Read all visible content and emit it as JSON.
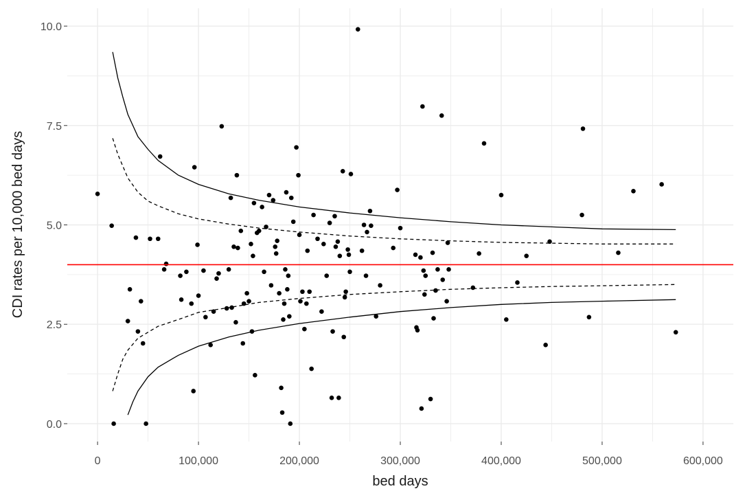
{
  "chart_data": {
    "type": "scatter",
    "title": "",
    "xlabel": "bed days",
    "ylabel": "CDI rates per 10,000 bed days",
    "xlim": [
      -30000,
      630000
    ],
    "ylim": [
      -0.45,
      10.45
    ],
    "x_ticks": [
      0,
      100000,
      200000,
      300000,
      400000,
      500000,
      600000
    ],
    "x_tick_labels": [
      "0",
      "100,000",
      "200,000",
      "300,000",
      "400,000",
      "500,000",
      "600,000"
    ],
    "y_ticks": [
      0,
      2.5,
      5,
      7.5,
      10
    ],
    "y_tick_labels": [
      "0.0",
      "2.5",
      "5.0",
      "7.5",
      "10.0"
    ],
    "grid": true,
    "legend": "none",
    "colors": {
      "points": "#000000",
      "mean_line": "#ff0000",
      "limit_lines": "#000000",
      "grid": "#ebebeb"
    },
    "mean": 4.0,
    "series": [
      {
        "type": "scatter",
        "points": [
          [
            0,
            5.78
          ],
          [
            14000,
            4.98
          ],
          [
            16000,
            0.0
          ],
          [
            30000,
            2.58
          ],
          [
            32000,
            3.38
          ],
          [
            38000,
            4.68
          ],
          [
            40000,
            2.32
          ],
          [
            43000,
            3.08
          ],
          [
            45000,
            2.02
          ],
          [
            48000,
            0.0
          ],
          [
            52000,
            4.65
          ],
          [
            60000,
            4.65
          ],
          [
            62000,
            6.72
          ],
          [
            66000,
            3.88
          ],
          [
            68000,
            4.02
          ],
          [
            82000,
            3.72
          ],
          [
            83000,
            3.12
          ],
          [
            88000,
            3.82
          ],
          [
            93000,
            3.02
          ],
          [
            95000,
            0.82
          ],
          [
            96000,
            6.45
          ],
          [
            99000,
            4.5
          ],
          [
            100000,
            3.22
          ],
          [
            105000,
            3.85
          ],
          [
            107000,
            2.68
          ],
          [
            112000,
            1.98
          ],
          [
            115000,
            2.82
          ],
          [
            118000,
            3.65
          ],
          [
            120000,
            3.78
          ],
          [
            123000,
            7.48
          ],
          [
            128000,
            2.9
          ],
          [
            130000,
            3.88
          ],
          [
            132000,
            5.68
          ],
          [
            133000,
            2.92
          ],
          [
            135000,
            4.45
          ],
          [
            137000,
            2.55
          ],
          [
            138000,
            6.25
          ],
          [
            139000,
            4.42
          ],
          [
            142000,
            4.85
          ],
          [
            144000,
            2.02
          ],
          [
            145000,
            3.02
          ],
          [
            148000,
            3.28
          ],
          [
            150000,
            3.08
          ],
          [
            152000,
            4.52
          ],
          [
            153000,
            2.32
          ],
          [
            154000,
            4.22
          ],
          [
            155000,
            5.55
          ],
          [
            156000,
            1.22
          ],
          [
            158000,
            4.8
          ],
          [
            160000,
            4.85
          ],
          [
            163000,
            5.45
          ],
          [
            165000,
            3.82
          ],
          [
            167000,
            4.95
          ],
          [
            170000,
            5.75
          ],
          [
            172000,
            3.48
          ],
          [
            174000,
            5.62
          ],
          [
            176000,
            4.45
          ],
          [
            177000,
            4.28
          ],
          [
            178000,
            4.6
          ],
          [
            180000,
            3.28
          ],
          [
            182000,
            0.9
          ],
          [
            183000,
            0.28
          ],
          [
            184000,
            2.62
          ],
          [
            185000,
            3.02
          ],
          [
            186000,
            3.88
          ],
          [
            187000,
            5.82
          ],
          [
            188000,
            3.38
          ],
          [
            189000,
            3.72
          ],
          [
            190000,
            2.7
          ],
          [
            191000,
            0.0
          ],
          [
            192000,
            5.68
          ],
          [
            194000,
            5.08
          ],
          [
            197000,
            6.95
          ],
          [
            199000,
            6.25
          ],
          [
            200000,
            4.75
          ],
          [
            201000,
            3.08
          ],
          [
            203000,
            3.32
          ],
          [
            205000,
            2.38
          ],
          [
            207000,
            3.02
          ],
          [
            208000,
            4.35
          ],
          [
            210000,
            3.32
          ],
          [
            212000,
            1.38
          ],
          [
            214000,
            5.25
          ],
          [
            218000,
            4.65
          ],
          [
            222000,
            2.82
          ],
          [
            224000,
            4.52
          ],
          [
            227000,
            3.72
          ],
          [
            230000,
            5.05
          ],
          [
            232000,
            0.65
          ],
          [
            233000,
            2.32
          ],
          [
            235000,
            5.22
          ],
          [
            236000,
            4.45
          ],
          [
            238000,
            4.58
          ],
          [
            239000,
            0.65
          ],
          [
            240000,
            4.22
          ],
          [
            243000,
            6.35
          ],
          [
            244000,
            2.18
          ],
          [
            245000,
            3.18
          ],
          [
            246000,
            3.32
          ],
          [
            248000,
            4.38
          ],
          [
            249000,
            4.25
          ],
          [
            250000,
            3.82
          ],
          [
            251000,
            6.28
          ],
          [
            258000,
            9.92
          ],
          [
            262000,
            4.35
          ],
          [
            264000,
            5.0
          ],
          [
            266000,
            3.72
          ],
          [
            267000,
            4.82
          ],
          [
            270000,
            5.35
          ],
          [
            271000,
            4.98
          ],
          [
            276000,
            2.7
          ],
          [
            280000,
            3.48
          ],
          [
            293000,
            4.42
          ],
          [
            297000,
            5.88
          ],
          [
            300000,
            4.92
          ],
          [
            315000,
            4.25
          ],
          [
            316000,
            2.42
          ],
          [
            317000,
            2.35
          ],
          [
            320000,
            4.18
          ],
          [
            321000,
            0.38
          ],
          [
            322000,
            7.98
          ],
          [
            323000,
            3.85
          ],
          [
            324000,
            3.25
          ],
          [
            325000,
            3.72
          ],
          [
            330000,
            0.62
          ],
          [
            332000,
            4.3
          ],
          [
            333000,
            2.65
          ],
          [
            335000,
            3.35
          ],
          [
            337000,
            3.88
          ],
          [
            341000,
            7.75
          ],
          [
            342000,
            3.62
          ],
          [
            346000,
            3.08
          ],
          [
            347000,
            4.55
          ],
          [
            348000,
            3.88
          ],
          [
            372000,
            3.42
          ],
          [
            378000,
            4.28
          ],
          [
            383000,
            7.05
          ],
          [
            400000,
            5.75
          ],
          [
            405000,
            2.62
          ],
          [
            416000,
            3.55
          ],
          [
            425000,
            4.22
          ],
          [
            444000,
            1.98
          ],
          [
            448000,
            4.58
          ],
          [
            480000,
            5.25
          ],
          [
            481000,
            7.42
          ],
          [
            487000,
            2.68
          ],
          [
            516000,
            4.3
          ],
          [
            531000,
            5.85
          ],
          [
            559000,
            6.02
          ],
          [
            573000,
            2.3
          ]
        ]
      },
      {
        "type": "line",
        "style": "solid",
        "color": "#000000",
        "points": [
          [
            15000,
            9.35
          ],
          [
            20000,
            8.7
          ],
          [
            25000,
            8.22
          ],
          [
            30000,
            7.78
          ],
          [
            40000,
            7.22
          ],
          [
            50000,
            6.9
          ],
          [
            60000,
            6.62
          ],
          [
            80000,
            6.25
          ],
          [
            100000,
            6.02
          ],
          [
            130000,
            5.78
          ],
          [
            160000,
            5.62
          ],
          [
            200000,
            5.45
          ],
          [
            250000,
            5.3
          ],
          [
            300000,
            5.18
          ],
          [
            350000,
            5.08
          ],
          [
            400000,
            5.0
          ],
          [
            450000,
            4.95
          ],
          [
            500000,
            4.9
          ],
          [
            573000,
            4.88
          ]
        ]
      },
      {
        "type": "line",
        "style": "dashed",
        "color": "#000000",
        "points": [
          [
            15000,
            7.18
          ],
          [
            20000,
            6.78
          ],
          [
            30000,
            6.18
          ],
          [
            40000,
            5.82
          ],
          [
            50000,
            5.6
          ],
          [
            60000,
            5.48
          ],
          [
            80000,
            5.28
          ],
          [
            100000,
            5.15
          ],
          [
            130000,
            5.02
          ],
          [
            160000,
            4.92
          ],
          [
            200000,
            4.82
          ],
          [
            250000,
            4.72
          ],
          [
            300000,
            4.65
          ],
          [
            350000,
            4.6
          ],
          [
            400000,
            4.56
          ],
          [
            450000,
            4.54
          ],
          [
            500000,
            4.52
          ],
          [
            573000,
            4.52
          ]
        ]
      },
      {
        "type": "line",
        "style": "dashed",
        "color": "#000000",
        "points": [
          [
            15000,
            0.82
          ],
          [
            20000,
            1.25
          ],
          [
            25000,
            1.62
          ],
          [
            30000,
            1.85
          ],
          [
            40000,
            2.15
          ],
          [
            50000,
            2.3
          ],
          [
            60000,
            2.45
          ],
          [
            80000,
            2.62
          ],
          [
            100000,
            2.8
          ],
          [
            130000,
            2.92
          ],
          [
            160000,
            3.05
          ],
          [
            200000,
            3.15
          ],
          [
            250000,
            3.25
          ],
          [
            300000,
            3.32
          ],
          [
            350000,
            3.38
          ],
          [
            400000,
            3.42
          ],
          [
            450000,
            3.45
          ],
          [
            500000,
            3.47
          ],
          [
            573000,
            3.5
          ]
        ]
      },
      {
        "type": "line",
        "style": "solid",
        "color": "#000000",
        "points": [
          [
            30000,
            0.22
          ],
          [
            35000,
            0.55
          ],
          [
            40000,
            0.82
          ],
          [
            50000,
            1.18
          ],
          [
            60000,
            1.42
          ],
          [
            80000,
            1.72
          ],
          [
            100000,
            1.95
          ],
          [
            130000,
            2.18
          ],
          [
            160000,
            2.35
          ],
          [
            200000,
            2.52
          ],
          [
            250000,
            2.68
          ],
          [
            300000,
            2.82
          ],
          [
            350000,
            2.92
          ],
          [
            400000,
            3.0
          ],
          [
            450000,
            3.05
          ],
          [
            500000,
            3.08
          ],
          [
            573000,
            3.12
          ]
        ]
      }
    ]
  }
}
